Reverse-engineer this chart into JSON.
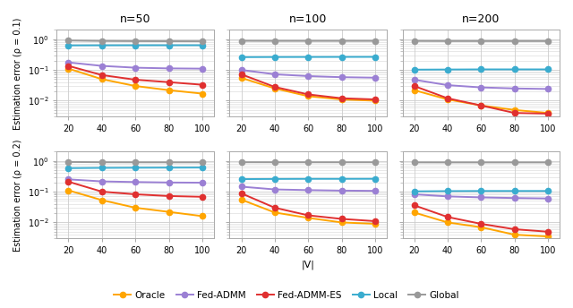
{
  "x": [
    20,
    40,
    60,
    80,
    100
  ],
  "titles_col": [
    "n=50",
    "n=100",
    "n=200"
  ],
  "ylabels_row": [
    "Estimation error (ρ = 0.1)",
    "Estimation error (ρ = 0.2)"
  ],
  "xlabel": "|V|",
  "series_order": [
    "Oracle",
    "Fed-ADMM",
    "Fed-ADMM-ES",
    "Local",
    "Global"
  ],
  "series": {
    "Oracle": {
      "color": "#FFA500",
      "marker": "o"
    },
    "Fed-ADMM": {
      "color": "#9B80D4",
      "marker": "o"
    },
    "Fed-ADMM-ES": {
      "color": "#E03030",
      "marker": "o"
    },
    "Local": {
      "color": "#3AACCF",
      "marker": "o"
    },
    "Global": {
      "color": "#999999",
      "marker": "o"
    }
  },
  "data": {
    "r0c0": {
      "Oracle": [
        0.11,
        0.05,
        0.03,
        0.022,
        0.017
      ],
      "Fed-ADMM": [
        0.175,
        0.135,
        0.118,
        0.112,
        0.11
      ],
      "Fed-ADMM-ES": [
        0.135,
        0.068,
        0.048,
        0.04,
        0.033
      ],
      "Local": [
        0.625,
        0.63,
        0.632,
        0.633,
        0.633
      ],
      "Global": [
        0.9,
        0.87,
        0.86,
        0.855,
        0.85
      ]
    },
    "r0c1": {
      "Oracle": [
        0.055,
        0.025,
        0.014,
        0.011,
        0.01
      ],
      "Fed-ADMM": [
        0.1,
        0.072,
        0.063,
        0.058,
        0.056
      ],
      "Fed-ADMM-ES": [
        0.072,
        0.028,
        0.016,
        0.012,
        0.011
      ],
      "Local": [
        0.26,
        0.262,
        0.263,
        0.264,
        0.265
      ],
      "Global": [
        0.88,
        0.875,
        0.875,
        0.875,
        0.875
      ]
    },
    "r0c2": {
      "Oracle": [
        0.022,
        0.011,
        0.007,
        0.005,
        0.004
      ],
      "Fed-ADMM": [
        0.048,
        0.032,
        0.027,
        0.025,
        0.024
      ],
      "Fed-ADMM-ES": [
        0.03,
        0.012,
        0.007,
        0.004,
        0.0038
      ],
      "Local": [
        0.102,
        0.103,
        0.104,
        0.104,
        0.104
      ],
      "Global": [
        0.87,
        0.865,
        0.865,
        0.865,
        0.865
      ]
    },
    "r1c0": {
      "Oracle": [
        0.11,
        0.053,
        0.03,
        0.022,
        0.016
      ],
      "Fed-ADMM": [
        0.25,
        0.215,
        0.205,
        0.198,
        0.195
      ],
      "Fed-ADMM-ES": [
        0.21,
        0.1,
        0.082,
        0.072,
        0.068
      ],
      "Local": [
        0.58,
        0.592,
        0.598,
        0.602,
        0.605
      ],
      "Global": [
        0.92,
        0.9,
        0.895,
        0.893,
        0.892
      ]
    },
    "r1c1": {
      "Oracle": [
        0.055,
        0.021,
        0.014,
        0.01,
        0.009
      ],
      "Fed-ADMM": [
        0.145,
        0.118,
        0.112,
        0.108,
        0.106
      ],
      "Fed-ADMM-ES": [
        0.088,
        0.03,
        0.017,
        0.013,
        0.011
      ],
      "Local": [
        0.255,
        0.258,
        0.26,
        0.26,
        0.261
      ],
      "Global": [
        0.9,
        0.898,
        0.897,
        0.897,
        0.897
      ]
    },
    "r1c2": {
      "Oracle": [
        0.021,
        0.01,
        0.007,
        0.004,
        0.0035
      ],
      "Fed-ADMM": [
        0.082,
        0.07,
        0.065,
        0.062,
        0.06
      ],
      "Fed-ADMM-ES": [
        0.036,
        0.015,
        0.009,
        0.006,
        0.005
      ],
      "Local": [
        0.102,
        0.104,
        0.105,
        0.105,
        0.105
      ],
      "Global": [
        0.89,
        0.888,
        0.888,
        0.888,
        0.888
      ]
    }
  },
  "figure_facecolor": "#ffffff",
  "axes_facecolor": "#ffffff",
  "grid_color": "#cccccc",
  "spine_color": "#aaaaaa",
  "title_fontsize": 9,
  "label_fontsize": 7,
  "tick_fontsize": 7,
  "legend_fontsize": 7.5,
  "linewidth": 1.4,
  "markersize": 4.5
}
